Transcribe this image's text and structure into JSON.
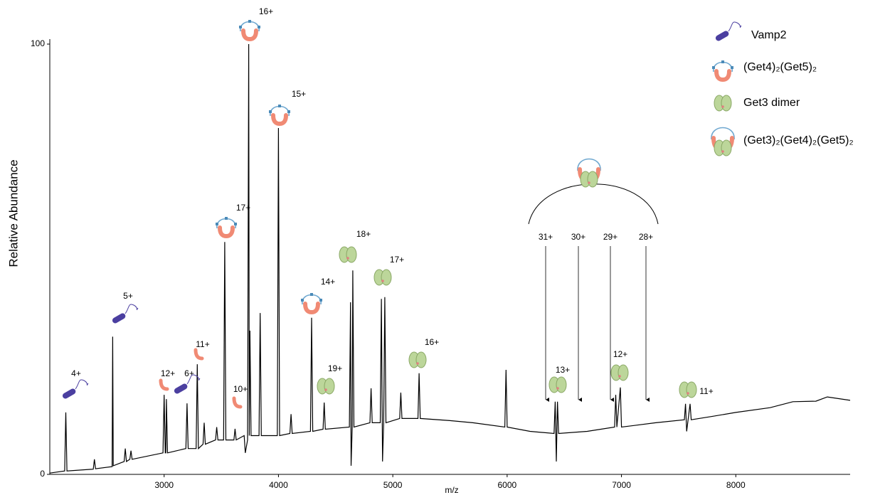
{
  "chart_data": {
    "type": "line",
    "x_label": "m/z",
    "y_label": "Relative Abundance",
    "xlim": [
      2000,
      9000
    ],
    "ylim": [
      0,
      100
    ],
    "xticks": [
      3000,
      4000,
      5000,
      6000,
      7000,
      8000
    ],
    "yticks": [
      0,
      100
    ],
    "series": [
      {
        "color": "#000000",
        "x": [
          2000,
          2130,
          2140,
          2150,
          2380,
          2390,
          2400,
          2545,
          2550,
          2555,
          2650,
          2660,
          2670,
          2700,
          2710,
          2720,
          2990,
          3000,
          3010,
          3015,
          3020,
          3030,
          3190,
          3200,
          3210,
          3280,
          3290,
          3300,
          3340,
          3350,
          3360,
          3450,
          3460,
          3470,
          3520,
          3530,
          3540,
          3610,
          3620,
          3630,
          3700,
          3710,
          3730,
          3740,
          3745,
          3750,
          3760,
          3830,
          3840,
          3850,
          3990,
          4000,
          4010,
          4100,
          4110,
          4120,
          4280,
          4290,
          4300,
          4390,
          4400,
          4410,
          4620,
          4630,
          4635,
          4645,
          4650,
          4660,
          4800,
          4810,
          4820,
          4890,
          4900,
          4910,
          4920,
          4930,
          4940,
          5060,
          5070,
          5080,
          5220,
          5230,
          5240,
          5500,
          5700,
          5980,
          5990,
          6000,
          6200,
          6410,
          6420,
          6430,
          6440,
          6450,
          6700,
          6940,
          6950,
          6960,
          6990,
          7000,
          7300,
          7550,
          7560,
          7570,
          7600,
          7610,
          7800,
          8000,
          8300,
          8500,
          8700,
          8800,
          9000
        ],
        "values": [
          0.3,
          0.8,
          14.4,
          0.8,
          1.2,
          3.5,
          1.3,
          1.8,
          32,
          2,
          3,
          6,
          3,
          3.5,
          5.5,
          3.5,
          5,
          18.5,
          5,
          5,
          17.5,
          5,
          6,
          16.5,
          6,
          6,
          25.6,
          6,
          7,
          12,
          7,
          8,
          11,
          8,
          8,
          54,
          8,
          8,
          10.6,
          8,
          9,
          5,
          8,
          100,
          9,
          33.4,
          9,
          9,
          37.5,
          9,
          9,
          80.5,
          9,
          9.5,
          14,
          9.5,
          10,
          36.4,
          10,
          10.5,
          16.7,
          10.5,
          11,
          40,
          2,
          11,
          47.4,
          11,
          12,
          20,
          12,
          12,
          40.8,
          3,
          12,
          41.2,
          12,
          13,
          19,
          13,
          13,
          23.5,
          13,
          12.5,
          12,
          11,
          24.3,
          11,
          10,
          9.5,
          16.9,
          3,
          16.9,
          9.5,
          10,
          11,
          18.5,
          11,
          20.2,
          11,
          12,
          12.7,
          16.4,
          10,
          16.4,
          12.7,
          13.5,
          14.4,
          15.5,
          16.9,
          17,
          18,
          17.2
        ]
      }
    ],
    "annotations": [
      "4+",
      "5+",
      "12+",
      "6+",
      "11+",
      "10+",
      "17+",
      "16+",
      "15+",
      "14+",
      "18+",
      "17+",
      "19+",
      "16+",
      "31+",
      "30+",
      "29+",
      "28+",
      "13+",
      "12+",
      "11+"
    ],
    "legend": [
      "Vamp2",
      "(Get4)₂(Get5)₂",
      "Get3 dimer",
      "(Get3)₂(Get4)₂(Get5)₂"
    ]
  }
}
